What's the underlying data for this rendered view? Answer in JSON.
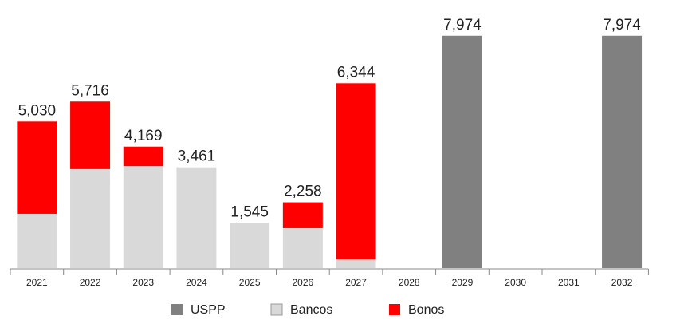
{
  "chart_data": {
    "type": "stacked_bar",
    "categories": [
      "2021",
      "2022",
      "2023",
      "2024",
      "2025",
      "2026",
      "2027",
      "2028",
      "2029",
      "2030",
      "2031",
      "2032"
    ],
    "series": [
      {
        "name": "USPP",
        "color": "#808080",
        "values": [
          null,
          null,
          null,
          null,
          null,
          null,
          null,
          null,
          7974,
          null,
          null,
          7974
        ]
      },
      {
        "name": "Bancos",
        "color": "#d9d9d9",
        "values": [
          1863,
          3398,
          3500,
          3461,
          1545,
          1370,
          300,
          null,
          null,
          null,
          null,
          null
        ]
      },
      {
        "name": "Bonos",
        "color": "#ff0000",
        "values": [
          3167,
          2318,
          669,
          null,
          null,
          888,
          6044,
          null,
          null,
          null,
          null,
          null
        ]
      }
    ],
    "totals": [
      5030,
      5716,
      4169,
      3461,
      1545,
      2258,
      6344,
      null,
      7974,
      null,
      null,
      7974
    ],
    "total_labels": [
      "5,030",
      "5,716",
      "4,169",
      "3,461",
      "1,545",
      "2,258",
      "6,344",
      null,
      "7,974",
      null,
      null,
      "7,974"
    ],
    "ylim": [
      0,
      9200
    ]
  }
}
